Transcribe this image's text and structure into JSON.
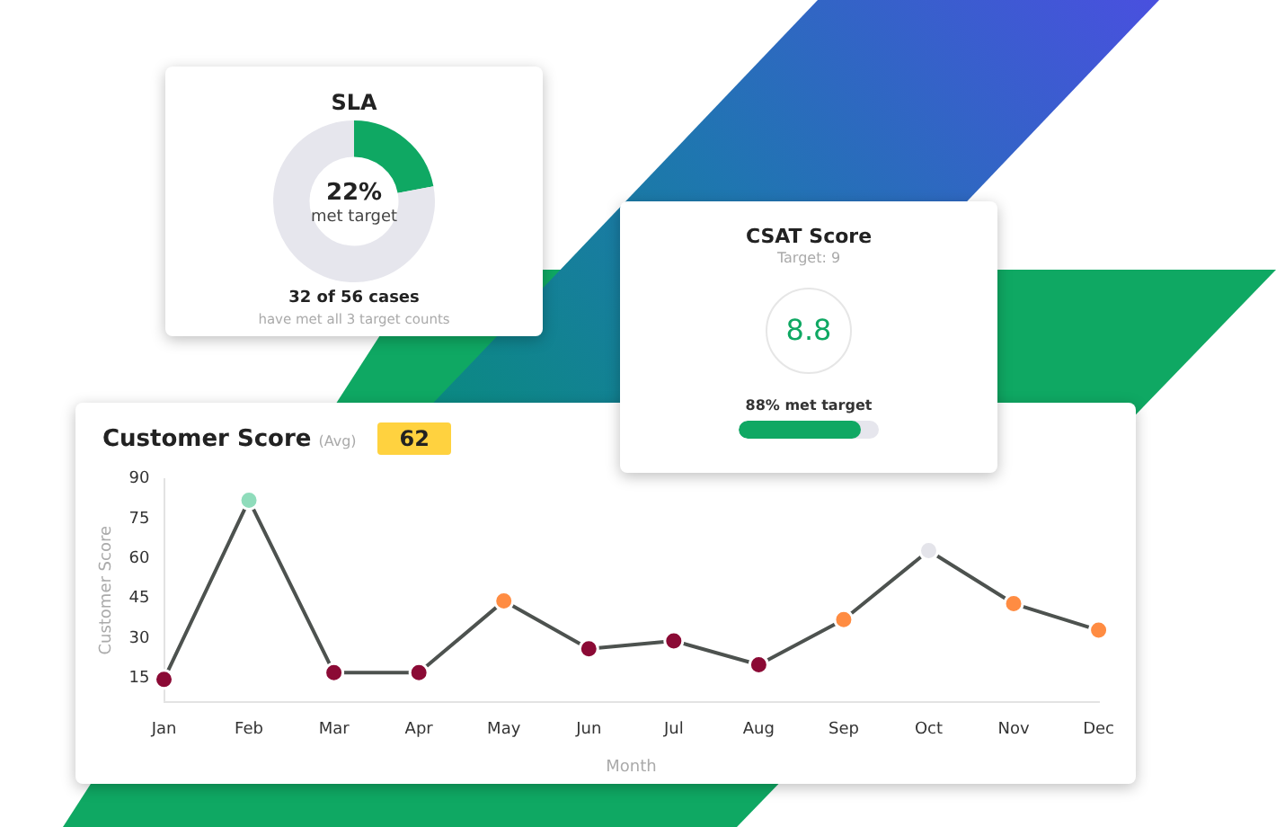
{
  "chart_data": [
    {
      "type": "donut",
      "title": "SLA",
      "categories": [
        null,
        null
      ],
      "values": [
        22,
        78
      ],
      "colors": [
        "#0fa863",
        "#e6e6ed"
      ],
      "annotations": [
        "22%",
        "met target",
        "32 of 56 cases",
        "have met all 3 target counts"
      ]
    },
    {
      "type": "other",
      "title": "CSAT Score",
      "subtitle": "Target: 9",
      "annotations": [
        "8.8",
        "88% met target"
      ]
    },
    {
      "type": "line",
      "title": "Customer Score",
      "subtitle": "(Avg)",
      "annotations": [
        "62"
      ],
      "xlabel": "Month",
      "ylabel": "Customer Score",
      "categories": [
        "Jan",
        "Feb",
        "Mar",
        "Apr",
        "May",
        "Jun",
        "Jul",
        "Aug",
        "Sep",
        "Oct",
        "Nov",
        "Dec"
      ],
      "ylim": [
        6,
        90
      ],
      "yticks": [
        15,
        30,
        45,
        60,
        75,
        90
      ],
      "marker": "circle",
      "series": [
        {
          "color": "#4d524f",
          "colors": [
            "#8b0a35",
            "#8fdcbb",
            "#8b0a35",
            "#8b0a35",
            "#ff8c42",
            "#8b0a35",
            "#8b0a35",
            "#8b0a35",
            "#ff8c42",
            "#e4e4ea",
            "#ff8c42",
            "#ff8c42"
          ],
          "values": [
            14.5,
            82,
            17,
            17,
            44,
            26,
            29,
            20,
            37,
            63,
            43,
            33
          ]
        }
      ]
    }
  ]
}
